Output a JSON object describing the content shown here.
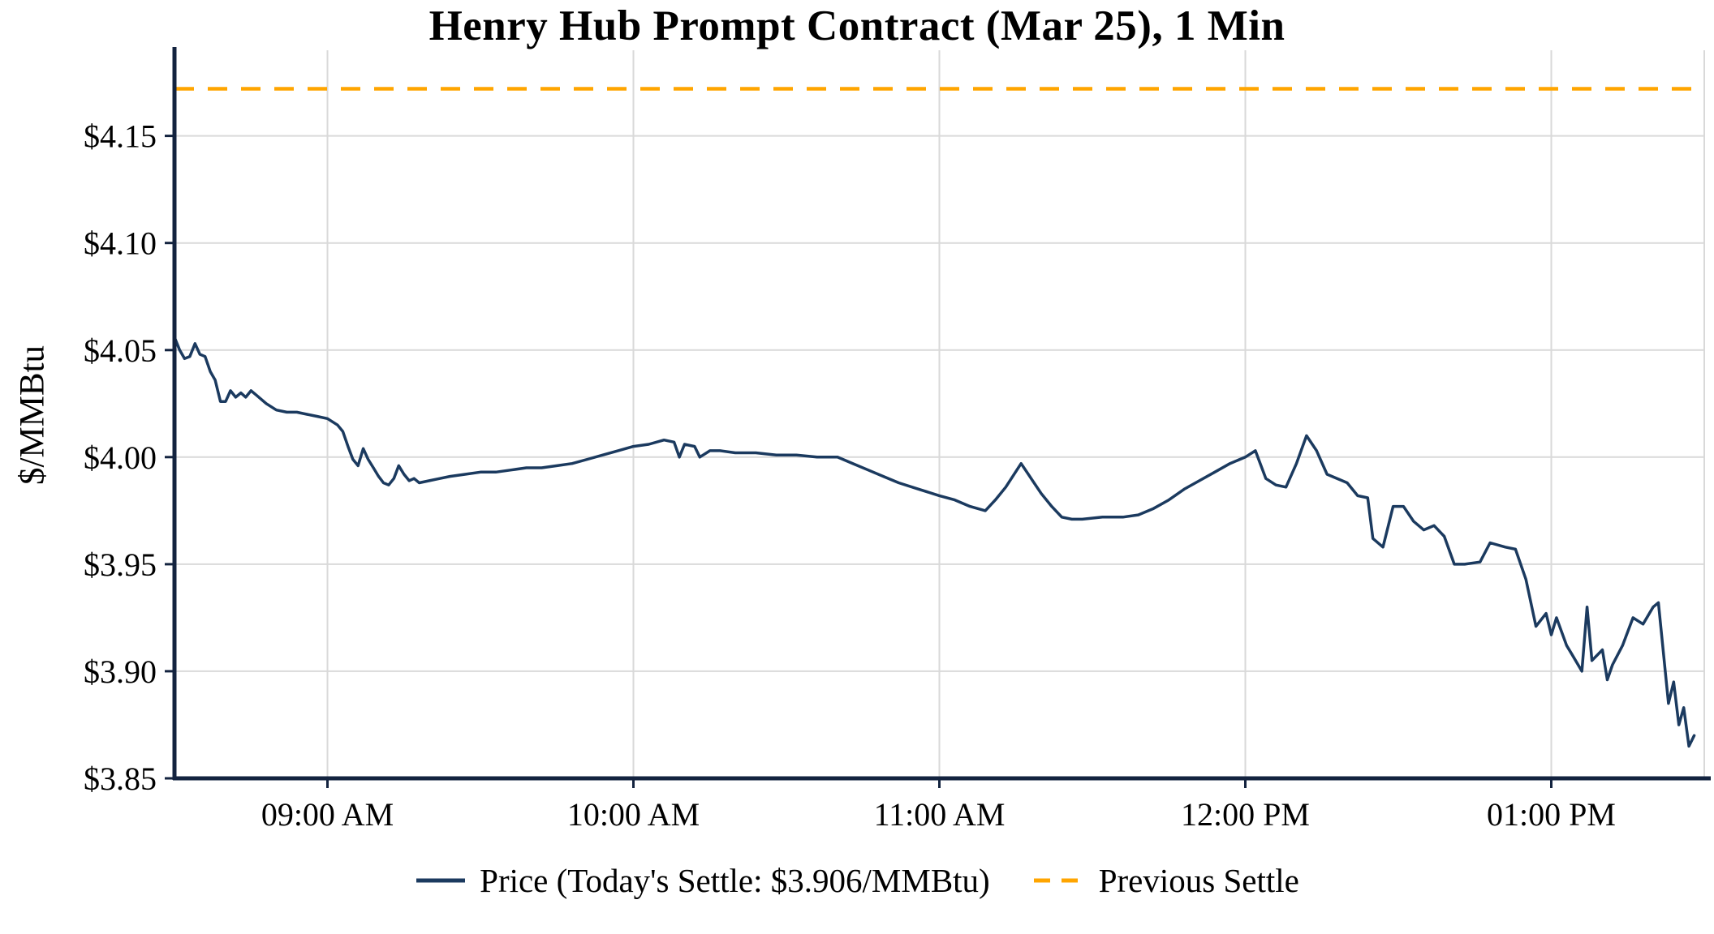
{
  "page": {
    "background": "#ffffff"
  },
  "chart_data": {
    "type": "line",
    "title": "Henry Hub Prompt Contract (Mar 25), 1 Min",
    "xlabel": "",
    "ylabel": "$/MMBtu",
    "xlim": [
      8.5,
      13.5
    ],
    "ylim": [
      3.85,
      4.19
    ],
    "x_unit": "hour_of_day_decimal",
    "grid": true,
    "legend_position": "bottom",
    "todays_settle": 3.906,
    "previous_settle": 4.172,
    "xticks": [
      {
        "value": 9,
        "label": "09:00 AM"
      },
      {
        "value": 10,
        "label": "10:00 AM"
      },
      {
        "value": 11,
        "label": "11:00 AM"
      },
      {
        "value": 12,
        "label": "12:00 PM"
      },
      {
        "value": 13,
        "label": "01:00 PM"
      },
      {
        "value": 13.5,
        "label": ""
      }
    ],
    "yticks": [
      {
        "value": 3.85,
        "label": "$3.85"
      },
      {
        "value": 3.9,
        "label": "$3.90"
      },
      {
        "value": 3.95,
        "label": "$3.95"
      },
      {
        "value": 4.0,
        "label": "$4.00"
      },
      {
        "value": 4.05,
        "label": "$4.05"
      },
      {
        "value": 4.1,
        "label": "$4.10"
      },
      {
        "value": 4.15,
        "label": "$4.15"
      }
    ],
    "colors": {
      "price": "#1b3a5f",
      "previous_settle": "#FFA500",
      "grid": "#d9d9d9",
      "axis": "#13233f",
      "text": "#000000"
    },
    "legend": [
      {
        "label": "Price (Today's Settle: $3.906/MMBtu)",
        "swatch": "solid-line",
        "color": "#1b3a5f"
      },
      {
        "label": "Previous Settle",
        "swatch": "dashed-line",
        "color": "#FFA500"
      }
    ],
    "series": [
      {
        "name": "Price",
        "style": "solid",
        "color": "#1b3a5f",
        "points": [
          [
            8.5,
            4.056
          ],
          [
            8.517,
            4.05
          ],
          [
            8.533,
            4.046
          ],
          [
            8.55,
            4.047
          ],
          [
            8.567,
            4.053
          ],
          [
            8.583,
            4.048
          ],
          [
            8.6,
            4.047
          ],
          [
            8.617,
            4.04
          ],
          [
            8.633,
            4.036
          ],
          [
            8.65,
            4.026
          ],
          [
            8.667,
            4.026
          ],
          [
            8.683,
            4.031
          ],
          [
            8.7,
            4.028
          ],
          [
            8.717,
            4.03
          ],
          [
            8.733,
            4.028
          ],
          [
            8.75,
            4.031
          ],
          [
            8.767,
            4.029
          ],
          [
            8.8,
            4.025
          ],
          [
            8.833,
            4.022
          ],
          [
            8.867,
            4.021
          ],
          [
            8.9,
            4.021
          ],
          [
            8.933,
            4.02
          ],
          [
            8.967,
            4.019
          ],
          [
            9.0,
            4.018
          ],
          [
            9.033,
            4.015
          ],
          [
            9.05,
            4.012
          ],
          [
            9.067,
            4.005
          ],
          [
            9.083,
            3.999
          ],
          [
            9.1,
            3.996
          ],
          [
            9.117,
            4.004
          ],
          [
            9.133,
            3.999
          ],
          [
            9.15,
            3.995
          ],
          [
            9.167,
            3.991
          ],
          [
            9.183,
            3.988
          ],
          [
            9.2,
            3.987
          ],
          [
            9.217,
            3.99
          ],
          [
            9.233,
            3.996
          ],
          [
            9.25,
            3.992
          ],
          [
            9.267,
            3.989
          ],
          [
            9.283,
            3.99
          ],
          [
            9.3,
            3.988
          ],
          [
            9.333,
            3.989
          ],
          [
            9.367,
            3.99
          ],
          [
            9.4,
            3.991
          ],
          [
            9.45,
            3.992
          ],
          [
            9.5,
            3.993
          ],
          [
            9.55,
            3.993
          ],
          [
            9.6,
            3.994
          ],
          [
            9.65,
            3.995
          ],
          [
            9.7,
            3.995
          ],
          [
            9.75,
            3.996
          ],
          [
            9.8,
            3.997
          ],
          [
            9.85,
            3.999
          ],
          [
            9.9,
            4.001
          ],
          [
            9.95,
            4.003
          ],
          [
            10.0,
            4.005
          ],
          [
            10.05,
            4.006
          ],
          [
            10.1,
            4.008
          ],
          [
            10.133,
            4.007
          ],
          [
            10.15,
            4.0
          ],
          [
            10.167,
            4.006
          ],
          [
            10.2,
            4.005
          ],
          [
            10.217,
            4.0
          ],
          [
            10.25,
            4.003
          ],
          [
            10.283,
            4.003
          ],
          [
            10.333,
            4.002
          ],
          [
            10.4,
            4.002
          ],
          [
            10.467,
            4.001
          ],
          [
            10.533,
            4.001
          ],
          [
            10.6,
            4.0
          ],
          [
            10.667,
            4.0
          ],
          [
            10.717,
            3.997
          ],
          [
            10.767,
            3.994
          ],
          [
            10.817,
            3.991
          ],
          [
            10.867,
            3.988
          ],
          [
            10.933,
            3.985
          ],
          [
            11.0,
            3.982
          ],
          [
            11.05,
            3.98
          ],
          [
            11.1,
            3.977
          ],
          [
            11.15,
            3.975
          ],
          [
            11.183,
            3.98
          ],
          [
            11.217,
            3.986
          ],
          [
            11.267,
            3.997
          ],
          [
            11.3,
            3.99
          ],
          [
            11.333,
            3.983
          ],
          [
            11.367,
            3.977
          ],
          [
            11.4,
            3.972
          ],
          [
            11.433,
            3.971
          ],
          [
            11.467,
            3.971
          ],
          [
            11.533,
            3.972
          ],
          [
            11.6,
            3.972
          ],
          [
            11.65,
            3.973
          ],
          [
            11.7,
            3.976
          ],
          [
            11.75,
            3.98
          ],
          [
            11.8,
            3.985
          ],
          [
            11.85,
            3.989
          ],
          [
            11.9,
            3.993
          ],
          [
            11.95,
            3.997
          ],
          [
            12.0,
            4.0
          ],
          [
            12.033,
            4.003
          ],
          [
            12.067,
            3.99
          ],
          [
            12.1,
            3.987
          ],
          [
            12.133,
            3.986
          ],
          [
            12.167,
            3.997
          ],
          [
            12.2,
            4.01
          ],
          [
            12.233,
            4.003
          ],
          [
            12.267,
            3.992
          ],
          [
            12.3,
            3.99
          ],
          [
            12.333,
            3.988
          ],
          [
            12.367,
            3.982
          ],
          [
            12.4,
            3.981
          ],
          [
            12.417,
            3.962
          ],
          [
            12.45,
            3.958
          ],
          [
            12.483,
            3.977
          ],
          [
            12.517,
            3.977
          ],
          [
            12.55,
            3.97
          ],
          [
            12.583,
            3.966
          ],
          [
            12.617,
            3.968
          ],
          [
            12.65,
            3.963
          ],
          [
            12.683,
            3.95
          ],
          [
            12.717,
            3.95
          ],
          [
            12.767,
            3.951
          ],
          [
            12.8,
            3.96
          ],
          [
            12.85,
            3.958
          ],
          [
            12.883,
            3.957
          ],
          [
            12.917,
            3.943
          ],
          [
            12.95,
            3.921
          ],
          [
            12.983,
            3.927
          ],
          [
            13.0,
            3.917
          ],
          [
            13.017,
            3.925
          ],
          [
            13.05,
            3.912
          ],
          [
            13.067,
            3.908
          ],
          [
            13.1,
            3.9
          ],
          [
            13.117,
            3.93
          ],
          [
            13.133,
            3.905
          ],
          [
            13.167,
            3.91
          ],
          [
            13.183,
            3.896
          ],
          [
            13.2,
            3.903
          ],
          [
            13.233,
            3.912
          ],
          [
            13.267,
            3.925
          ],
          [
            13.3,
            3.922
          ],
          [
            13.333,
            3.93
          ],
          [
            13.35,
            3.932
          ],
          [
            13.383,
            3.885
          ],
          [
            13.4,
            3.895
          ],
          [
            13.417,
            3.875
          ],
          [
            13.433,
            3.883
          ],
          [
            13.45,
            3.865
          ],
          [
            13.467,
            3.87
          ]
        ]
      },
      {
        "name": "Previous Settle",
        "style": "dashed",
        "color": "#FFA500",
        "value": 4.172
      }
    ]
  }
}
